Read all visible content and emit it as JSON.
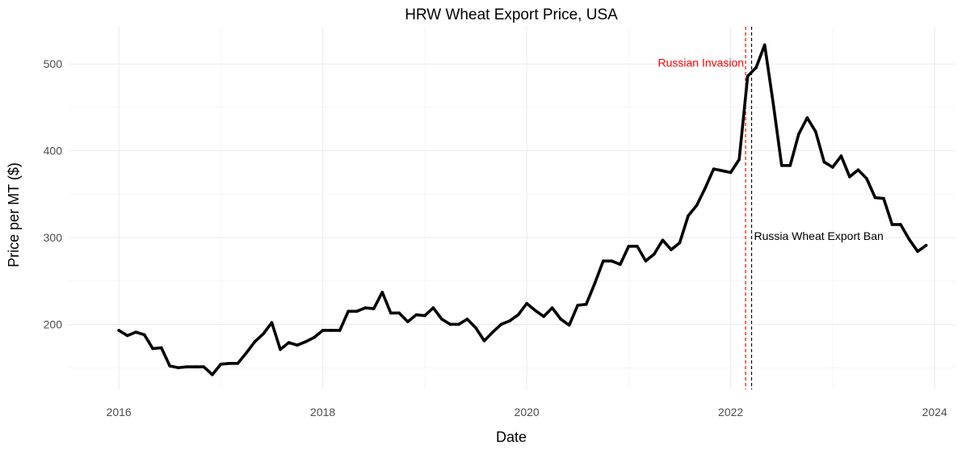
{
  "chart_data": {
    "type": "line",
    "title": "HRW Wheat Export Price, USA",
    "xlabel": "Date",
    "ylabel": "Price per MT ($)",
    "xlim": [
      "2015-07-01",
      "2024-03-15"
    ],
    "ylim": [
      125,
      543
    ],
    "x_ticks": [
      "2016",
      "2018",
      "2020",
      "2022",
      "2024"
    ],
    "y_ticks": [
      "200",
      "300",
      "400",
      "500"
    ],
    "grid": true,
    "series": [
      {
        "color": "#000000",
        "points": [
          [
            "2016-01",
            193
          ],
          [
            "2016-02",
            187
          ],
          [
            "2016-03",
            191
          ],
          [
            "2016-04",
            188
          ],
          [
            "2016-05",
            172
          ],
          [
            "2016-06",
            173
          ],
          [
            "2016-07",
            152
          ],
          [
            "2016-08",
            150
          ],
          [
            "2016-09",
            151
          ],
          [
            "2016-10",
            151
          ],
          [
            "2016-11",
            151
          ],
          [
            "2016-12",
            142
          ],
          [
            "2017-01",
            154
          ],
          [
            "2017-02",
            155
          ],
          [
            "2017-03",
            155
          ],
          [
            "2017-04",
            167
          ],
          [
            "2017-05",
            180
          ],
          [
            "2017-06",
            189
          ],
          [
            "2017-07",
            202
          ],
          [
            "2017-08",
            171
          ],
          [
            "2017-09",
            179
          ],
          [
            "2017-10",
            176
          ],
          [
            "2017-11",
            180
          ],
          [
            "2017-12",
            185
          ],
          [
            "2018-01",
            193
          ],
          [
            "2018-02",
            193
          ],
          [
            "2018-03",
            193
          ],
          [
            "2018-04",
            215
          ],
          [
            "2018-05",
            215
          ],
          [
            "2018-06",
            219
          ],
          [
            "2018-07",
            218
          ],
          [
            "2018-08",
            237
          ],
          [
            "2018-09",
            213
          ],
          [
            "2018-10",
            213
          ],
          [
            "2018-11",
            203
          ],
          [
            "2018-12",
            211
          ],
          [
            "2019-01",
            210
          ],
          [
            "2019-02",
            219
          ],
          [
            "2019-03",
            206
          ],
          [
            "2019-04",
            200
          ],
          [
            "2019-05",
            200
          ],
          [
            "2019-06",
            206
          ],
          [
            "2019-07",
            196
          ],
          [
            "2019-08",
            181
          ],
          [
            "2019-09",
            191
          ],
          [
            "2019-10",
            200
          ],
          [
            "2019-11",
            204
          ],
          [
            "2019-12",
            211
          ],
          [
            "2020-01",
            224
          ],
          [
            "2020-02",
            216
          ],
          [
            "2020-03",
            209
          ],
          [
            "2020-04",
            219
          ],
          [
            "2020-05",
            206
          ],
          [
            "2020-06",
            199
          ],
          [
            "2020-07",
            222
          ],
          [
            "2020-08",
            223
          ],
          [
            "2020-09",
            247
          ],
          [
            "2020-10",
            273
          ],
          [
            "2020-11",
            273
          ],
          [
            "2020-12",
            269
          ],
          [
            "2021-01",
            290
          ],
          [
            "2021-02",
            290
          ],
          [
            "2021-03",
            273
          ],
          [
            "2021-04",
            281
          ],
          [
            "2021-05",
            297
          ],
          [
            "2021-06",
            286
          ],
          [
            "2021-07",
            294
          ],
          [
            "2021-08",
            325
          ],
          [
            "2021-09",
            337
          ],
          [
            "2021-10",
            357
          ],
          [
            "2021-11",
            379
          ],
          [
            "2021-12",
            377
          ],
          [
            "2022-01",
            375
          ],
          [
            "2022-02",
            390
          ],
          [
            "2022-03",
            486
          ],
          [
            "2022-04",
            496
          ],
          [
            "2022-05",
            522
          ],
          [
            "2022-06",
            455
          ],
          [
            "2022-07",
            383
          ],
          [
            "2022-08",
            383
          ],
          [
            "2022-09",
            419
          ],
          [
            "2022-10",
            438
          ],
          [
            "2022-11",
            422
          ],
          [
            "2022-12",
            387
          ],
          [
            "2023-01",
            381
          ],
          [
            "2023-02",
            394
          ],
          [
            "2023-03",
            370
          ],
          [
            "2023-04",
            378
          ],
          [
            "2023-05",
            368
          ],
          [
            "2023-06",
            346
          ],
          [
            "2023-07",
            345
          ],
          [
            "2023-08",
            315
          ],
          [
            "2023-09",
            315
          ],
          [
            "2023-10",
            298
          ],
          [
            "2023-11",
            284
          ],
          [
            "2023-12",
            291
          ]
        ]
      }
    ],
    "annotations": [
      {
        "label": "Russian Invasion",
        "x": "2022-02-24",
        "color": "#ff0000",
        "side": "left",
        "y": 497
      },
      {
        "label": "Russia Wheat Export Ban",
        "x": "2022-03-15",
        "color": "#000000",
        "side": "right",
        "y": 297
      }
    ]
  }
}
